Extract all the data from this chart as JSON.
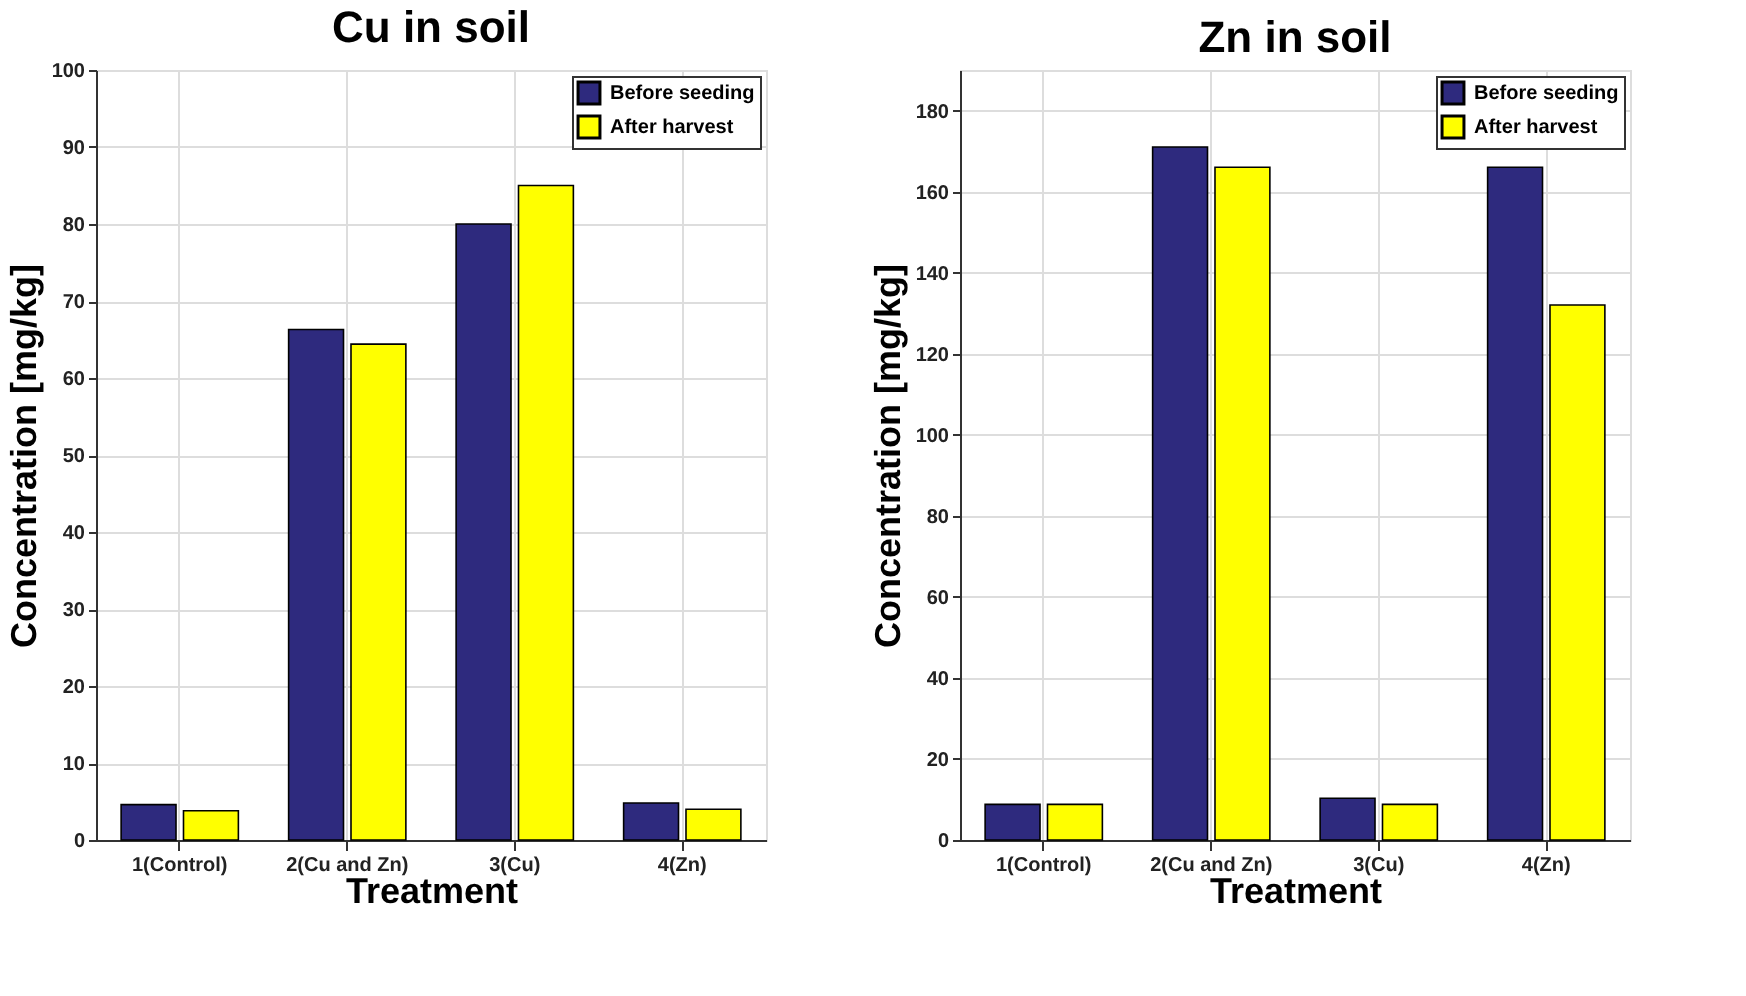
{
  "chart_data": [
    {
      "type": "bar",
      "title": "Cu in soil",
      "xlabel": "Treatment",
      "ylabel": "Concentration [mg/kg]",
      "categories": [
        "1(Control)",
        "2(Cu and Zn)",
        "3(Cu)",
        "4(Zn)"
      ],
      "series": [
        {
          "name": "Before seeding",
          "color": "#2e2a7e",
          "values": [
            4.6,
            66.3,
            80,
            4.8
          ]
        },
        {
          "name": "After harvest",
          "color": "#ffff00",
          "values": [
            3.8,
            64.4,
            85,
            4.0
          ]
        }
      ],
      "ylim": [
        0,
        100
      ],
      "yticks": [
        0,
        10,
        20,
        30,
        40,
        50,
        60,
        70,
        80,
        90,
        100
      ],
      "grid": true,
      "legend": "top right"
    },
    {
      "type": "bar",
      "title": "Zn in soil",
      "xlabel": "Treatment",
      "ylabel": "Concentration [mg/kg]",
      "categories": [
        "1(Control)",
        "2(Cu and Zn)",
        "3(Cu)",
        "4(Zn)"
      ],
      "series": [
        {
          "name": "Before seeding",
          "color": "#2e2a7e",
          "values": [
            8.8,
            171,
            10.3,
            166
          ]
        },
        {
          "name": "After harvest",
          "color": "#ffff00",
          "values": [
            8.8,
            166,
            8.8,
            132
          ]
        }
      ],
      "ylim": [
        0,
        190
      ],
      "yticks": [
        0,
        20,
        40,
        60,
        80,
        100,
        120,
        140,
        160,
        180
      ],
      "grid": true,
      "legend": "top right"
    }
  ]
}
